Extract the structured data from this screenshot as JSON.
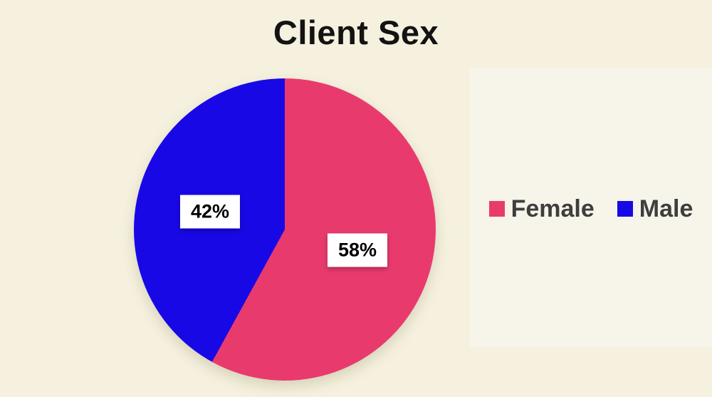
{
  "page": {
    "background_color": "#f5f1de",
    "panel_background_color": "#f7f4ea"
  },
  "title": "Client Sex",
  "chart_data": {
    "type": "pie",
    "title": "Client Sex",
    "labels": [
      "Female",
      "Male"
    ],
    "values": [
      58,
      42
    ],
    "value_labels": [
      "58%",
      "42%"
    ],
    "colors": [
      "#e93a6e",
      "#1908e6"
    ],
    "start_angle_deg": 0,
    "direction": "clockwise",
    "legend_position": "right",
    "legend_text_color": "#3e3e3e"
  }
}
